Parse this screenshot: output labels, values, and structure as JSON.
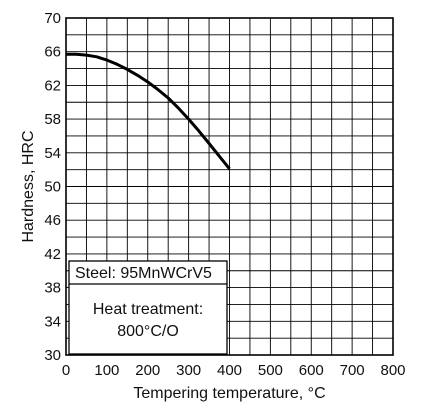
{
  "chart_data": {
    "type": "line",
    "xlabel": "Tempering temperature, °C",
    "ylabel": "Hardness, HRC",
    "xlim": [
      0,
      800
    ],
    "ylim": [
      30,
      70
    ],
    "x_ticks": [
      0,
      100,
      200,
      300,
      400,
      500,
      600,
      700,
      800
    ],
    "y_ticks": [
      30,
      34,
      38,
      42,
      46,
      50,
      54,
      58,
      62,
      66,
      70
    ],
    "x_minor_step": 50,
    "y_minor_step": 2,
    "grid": true,
    "series": [
      {
        "x": [
          0,
          25,
          50,
          75,
          100,
          125,
          150,
          175,
          200,
          225,
          250,
          275,
          300,
          325,
          350,
          375,
          400
        ],
        "y": [
          65.7,
          65.7,
          65.6,
          65.4,
          65.0,
          64.5,
          63.9,
          63.2,
          62.4,
          61.5,
          60.5,
          59.3,
          58.0,
          56.6,
          55.1,
          53.6,
          52.1
        ],
        "color": "#000000"
      }
    ],
    "annotation": {
      "steel": "Steel: 95MnWCrV5",
      "heat_treatment_line1": "Heat treatment:",
      "heat_treatment_line2": "800°C/O"
    }
  }
}
